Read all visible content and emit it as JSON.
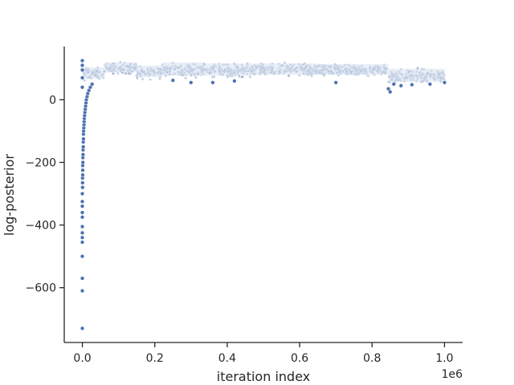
{
  "chart_data": {
    "type": "scatter",
    "title": "",
    "xlabel": "iteration index",
    "ylabel": "log-posterior",
    "x_offset_label": "1e6",
    "xlim": [
      -50000,
      1050000
    ],
    "ylim": [
      -775,
      170
    ],
    "x_ticks": [
      0,
      200000,
      400000,
      600000,
      800000,
      1000000
    ],
    "x_tick_labels": [
      "0.0",
      "0.2",
      "0.4",
      "0.6",
      "0.8",
      "1.0"
    ],
    "y_ticks": [
      -600,
      -400,
      -200,
      0
    ],
    "y_tick_labels": [
      "−600",
      "−400",
      "−200",
      "0"
    ],
    "grid": false,
    "marker_color": "#4c72b0",
    "series": [
      {
        "burn_in_points": [
          [
            0,
            125
          ],
          [
            0,
            110
          ],
          [
            0,
            95
          ],
          [
            0,
            70
          ],
          [
            0,
            40
          ],
          [
            0,
            -730
          ],
          [
            0,
            -610
          ],
          [
            0,
            -570
          ],
          [
            0,
            -500
          ],
          [
            0,
            -455
          ],
          [
            0,
            -440
          ],
          [
            0,
            -425
          ],
          [
            0,
            -405
          ],
          [
            0,
            -375
          ],
          [
            0,
            -360
          ],
          [
            0,
            -340
          ],
          [
            0,
            -325
          ],
          [
            0,
            -300
          ],
          [
            500,
            -280
          ],
          [
            500,
            -265
          ],
          [
            500,
            -250
          ],
          [
            1000,
            -240
          ],
          [
            1000,
            -225
          ],
          [
            1000,
            -210
          ],
          [
            1500,
            -200
          ],
          [
            1500,
            -185
          ],
          [
            2000,
            -175
          ],
          [
            2000,
            -160
          ],
          [
            2500,
            -150
          ],
          [
            2500,
            -135
          ],
          [
            3000,
            -125
          ],
          [
            3000,
            -110
          ],
          [
            3500,
            -100
          ],
          [
            4000,
            -90
          ],
          [
            4500,
            -80
          ],
          [
            5000,
            -70
          ],
          [
            5500,
            -60
          ],
          [
            6000,
            -50
          ],
          [
            7000,
            -40
          ],
          [
            8000,
            -30
          ],
          [
            9000,
            -20
          ],
          [
            10000,
            -10
          ],
          [
            11000,
            0
          ],
          [
            13000,
            10
          ],
          [
            15000,
            20
          ],
          [
            18000,
            30
          ],
          [
            22000,
            40
          ],
          [
            27000,
            50
          ]
        ],
        "trace_segments": [
          {
            "x_start": 0,
            "x_end": 60000,
            "low": 55,
            "high": 110
          },
          {
            "x_start": 60000,
            "x_end": 150000,
            "low": 75,
            "high": 125
          },
          {
            "x_start": 150000,
            "x_end": 220000,
            "low": 60,
            "high": 115
          },
          {
            "x_start": 220000,
            "x_end": 340000,
            "low": 65,
            "high": 125
          },
          {
            "x_start": 340000,
            "x_end": 480000,
            "low": 65,
            "high": 122
          },
          {
            "x_start": 480000,
            "x_end": 650000,
            "low": 68,
            "high": 122
          },
          {
            "x_start": 650000,
            "x_end": 845000,
            "low": 68,
            "high": 120
          },
          {
            "x_start": 845000,
            "x_end": 1000000,
            "low": 45,
            "high": 105
          }
        ],
        "outliers": [
          [
            845000,
            35
          ],
          [
            850000,
            25
          ],
          [
            860000,
            50
          ],
          [
            880000,
            45
          ],
          [
            700000,
            55
          ],
          [
            360000,
            55
          ],
          [
            420000,
            60
          ],
          [
            300000,
            55
          ],
          [
            250000,
            62
          ],
          [
            910000,
            48
          ],
          [
            960000,
            50
          ],
          [
            1000000,
            55
          ]
        ]
      }
    ]
  }
}
